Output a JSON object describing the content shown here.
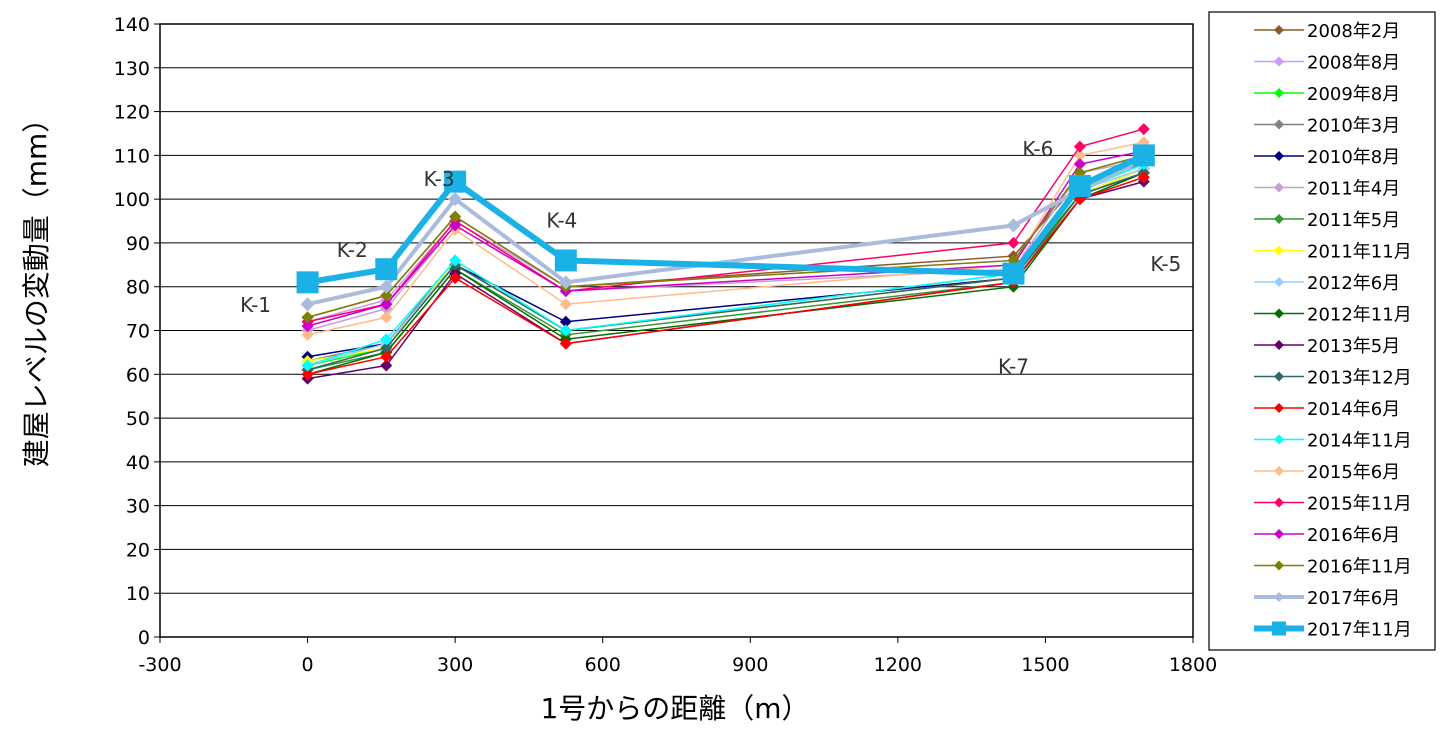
{
  "chart_data": {
    "type": "line",
    "title": "",
    "xlabel": "1号からの距離（m）",
    "ylabel": "建屋レベルの変動量（mm）",
    "xlim": [
      -300,
      1800
    ],
    "ylim": [
      0,
      140
    ],
    "x_ticks": [
      -300,
      0,
      300,
      600,
      900,
      1200,
      1500,
      1800
    ],
    "y_ticks": [
      0,
      10,
      20,
      30,
      40,
      50,
      60,
      70,
      80,
      90,
      100,
      110,
      120,
      130,
      140
    ],
    "grid": "horizontal",
    "legend_position": "right",
    "x": [
      0,
      160,
      300,
      525,
      1435,
      1570,
      1700
    ],
    "point_labels": [
      {
        "text": "K-1",
        "x": 0,
        "y": 76
      },
      {
        "text": "K-2",
        "x": 160,
        "y": 85
      },
      {
        "text": "K-3",
        "x": 300,
        "y": 103
      },
      {
        "text": "K-4",
        "x": 525,
        "y": 89
      },
      {
        "text": "K-7",
        "x": 1435,
        "y": 73
      },
      {
        "text": "K-6",
        "x": 1570,
        "y": 113
      },
      {
        "text": "K-5",
        "x": 1700,
        "y": 95
      }
    ],
    "series": [
      {
        "name": "2008年2月",
        "color": "#8B5A2B",
        "marker": "diamond",
        "width": 1.5,
        "values": [
          73,
          78,
          96,
          80,
          87,
          104,
          108
        ]
      },
      {
        "name": "2008年8月",
        "color": "#CC99FF",
        "marker": "diamond",
        "width": 1.5,
        "values": [
          72,
          77,
          95,
          80,
          86,
          106,
          110
        ]
      },
      {
        "name": "2009年8月",
        "color": "#00FF00",
        "marker": "diamond",
        "width": 1.5,
        "values": [
          62,
          66,
          85,
          70,
          83,
          101,
          107
        ]
      },
      {
        "name": "2010年3月",
        "color": "#808080",
        "marker": "diamond",
        "width": 1.5,
        "values": [
          63,
          67,
          86,
          70,
          82,
          101,
          107
        ]
      },
      {
        "name": "2010年8月",
        "color": "#000080",
        "marker": "diamond",
        "width": 1.5,
        "values": [
          64,
          67,
          85,
          72,
          82,
          101,
          106
        ]
      },
      {
        "name": "2011年4月",
        "color": "#C8A0D0",
        "marker": "diamond",
        "width": 1.5,
        "values": [
          70,
          75,
          94,
          79,
          84,
          106,
          109
        ]
      },
      {
        "name": "2011年5月",
        "color": "#339933",
        "marker": "diamond",
        "width": 1.5,
        "values": [
          61,
          65,
          84,
          69,
          81,
          101,
          106
        ]
      },
      {
        "name": "2011年11月",
        "color": "#FFFF00",
        "marker": "diamond",
        "width": 1.5,
        "values": [
          63,
          66,
          86,
          70,
          82,
          101,
          107
        ]
      },
      {
        "name": "2012年6月",
        "color": "#99CCFF",
        "marker": "diamond",
        "width": 1.5,
        "values": [
          62,
          67,
          85,
          70,
          83,
          102,
          107
        ]
      },
      {
        "name": "2012年11月",
        "color": "#007000",
        "marker": "diamond",
        "width": 1.5,
        "values": [
          60,
          65,
          84,
          68,
          80,
          100,
          106
        ]
      },
      {
        "name": "2013年5月",
        "color": "#660066",
        "marker": "diamond",
        "width": 1.5,
        "values": [
          59,
          62,
          83,
          67,
          81,
          100,
          104
        ]
      },
      {
        "name": "2013年12月",
        "color": "#336666",
        "marker": "diamond",
        "width": 1.5,
        "values": [
          61,
          66,
          85,
          70,
          82,
          101,
          106
        ]
      },
      {
        "name": "2014年6月",
        "color": "#FF0000",
        "marker": "diamond",
        "width": 1.5,
        "values": [
          60,
          64,
          82,
          67,
          81,
          100,
          105
        ]
      },
      {
        "name": "2014年11月",
        "color": "#00FFFF",
        "marker": "diamond",
        "width": 1.5,
        "values": [
          62,
          68,
          86,
          70,
          83,
          102,
          108
        ]
      },
      {
        "name": "2015年6月",
        "color": "#FFBB88",
        "marker": "diamond",
        "width": 1.5,
        "values": [
          69,
          73,
          93,
          76,
          85,
          110,
          113
        ]
      },
      {
        "name": "2015年11月",
        "color": "#FF0066",
        "marker": "diamond",
        "width": 1.5,
        "values": [
          72,
          76,
          95,
          79,
          90,
          112,
          116
        ]
      },
      {
        "name": "2016年6月",
        "color": "#CC00CC",
        "marker": "diamond",
        "width": 1.5,
        "values": [
          71,
          76,
          94,
          79,
          85,
          108,
          111
        ]
      },
      {
        "name": "2016年11月",
        "color": "#808000",
        "marker": "diamond",
        "width": 1.5,
        "values": [
          73,
          78,
          96,
          80,
          86,
          106,
          110
        ]
      },
      {
        "name": "2017年6月",
        "color": "#AABBDD",
        "marker": "diamond",
        "width": 4,
        "values": [
          76,
          80,
          100,
          81,
          94,
          102,
          109
        ]
      },
      {
        "name": "2017年11月",
        "color": "#1AB2E6",
        "marker": "square",
        "width": 6,
        "values": [
          81,
          84,
          104,
          86,
          83,
          103,
          110
        ]
      }
    ]
  }
}
